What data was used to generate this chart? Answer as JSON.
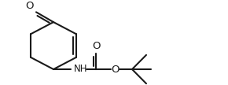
{
  "bg_color": "#ffffff",
  "line_color": "#1a1a1a",
  "line_width": 1.5,
  "font_size": 8.5,
  "figsize": [
    2.9,
    1.08
  ],
  "dpi": 100,
  "xlim": [
    0,
    290
  ],
  "ylim": [
    0,
    108
  ]
}
